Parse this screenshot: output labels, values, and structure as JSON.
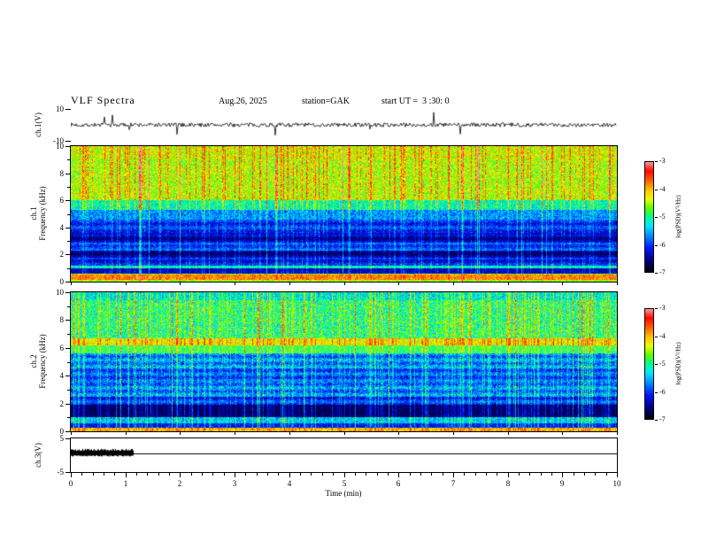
{
  "header": {
    "title": "VLF Spectra",
    "date": "Aug.26, 2025",
    "station": "station=GAK",
    "start_ut": "start UT =  3 :30: 0"
  },
  "x_axis": {
    "label": "Time (min)",
    "min": 0,
    "max": 10,
    "major_ticks": [
      0,
      1,
      2,
      3,
      4,
      5,
      6,
      7,
      8,
      9,
      10
    ],
    "minor_step": 0.2
  },
  "panels": {
    "ch1_wave": {
      "ylabel": "ch.1(V)",
      "ymin": -10,
      "ymax": 10,
      "ytick_labels": [
        10,
        -10
      ]
    },
    "ch1_spec": {
      "ylabel_line1": "ch.1",
      "ylabel_line2": "Frequency (kHz)",
      "ymin": 0,
      "ymax": 10,
      "major_ticks": [
        10,
        8,
        6,
        4,
        2,
        0
      ],
      "minor_ticks": [
        9,
        7,
        5,
        3,
        1
      ]
    },
    "ch2_spec": {
      "ylabel_line1": "ch.2",
      "ylabel_line2": "Frequency (kHz)",
      "ymin": 0,
      "ymax": 10,
      "major_ticks": [
        10,
        8,
        6,
        4,
        2,
        0
      ],
      "minor_ticks": [
        9,
        7,
        5,
        3,
        1
      ]
    },
    "ch3_wave": {
      "ylabel": "ch.3(V)",
      "ymin": -5,
      "ymax": 5,
      "ytick_labels": [
        5,
        -5
      ]
    }
  },
  "colorbar": {
    "label": "log(PSD)(V²/Hz)",
    "tick_values": [
      -3,
      -4,
      -5,
      -6,
      -7
    ],
    "vmin": -7,
    "vmax": -3
  },
  "colors": {
    "axis": "#000000",
    "background": "#ffffff"
  },
  "colormap_stops": [
    [
      0.0,
      "#000008"
    ],
    [
      0.1,
      "#000080"
    ],
    [
      0.22,
      "#0018ff"
    ],
    [
      0.33,
      "#0090ff"
    ],
    [
      0.42,
      "#00e8ff"
    ],
    [
      0.5,
      "#00ff90"
    ],
    [
      0.58,
      "#58ff00"
    ],
    [
      0.66,
      "#e8ff00"
    ],
    [
      0.74,
      "#ffc800"
    ],
    [
      0.83,
      "#ff6000"
    ],
    [
      0.92,
      "#ff0800"
    ],
    [
      1.0,
      "#ff9898"
    ]
  ],
  "chart_data": [
    {
      "type": "line",
      "name": "ch.1 waveform",
      "xlabel": "Time (min)",
      "xlim": [
        0,
        10
      ],
      "ylabel": "ch.1(V)",
      "ylim": [
        -10,
        10
      ],
      "summary": "Broadband noise centered on 0 V with typical excursions of ±2 V and intermittent impulsive spikes reaching roughly ±8 V throughout the 10-minute record.",
      "gen": {
        "seed": 7,
        "noise_v": 1.3,
        "spike_prob": 0.015,
        "spike_v": 6.5
      }
    },
    {
      "type": "heatmap",
      "name": "ch.1 spectrogram",
      "xlabel": "Time (min)",
      "xlim": [
        0,
        10
      ],
      "ylabel": "Frequency (kHz)",
      "ylim": [
        0,
        10
      ],
      "zlabel": "log(PSD)(V²/Hz)",
      "zlim": [
        -7,
        -3
      ],
      "summary": "Above ~6 kHz yellow-green background (≈-4.5) with dense red vertical bursts to ≈-3; 2-5 kHz blue (≈-6 to -6.5) crossed by cyan vertical streaks; green line near 1 kHz; bright orange band ≈0.1-0.5 kHz (≈-3.9).",
      "bands": [
        {
          "f": [
            9.0,
            10.01
          ],
          "v": -4.35,
          "n": 0.55
        },
        {
          "f": [
            6.0,
            9.0
          ],
          "v": -4.45,
          "n": 0.55
        },
        {
          "f": [
            5.3,
            6.0
          ],
          "v": -5.15,
          "n": 0.5
        },
        {
          "f": [
            4.6,
            5.3
          ],
          "v": -5.7,
          "n": 0.45
        },
        {
          "f": [
            3.6,
            4.6
          ],
          "v": -6.1,
          "n": 0.4
        },
        {
          "f": [
            2.9,
            3.6
          ],
          "v": -6.45,
          "n": 0.3
        },
        {
          "f": [
            2.3,
            2.9
          ],
          "v": -6.0,
          "n": 0.4
        },
        {
          "f": [
            1.75,
            2.3
          ],
          "v": -6.55,
          "n": 0.3
        },
        {
          "f": [
            1.2,
            1.75
          ],
          "v": -6.2,
          "n": 0.4
        },
        {
          "f": [
            1.0,
            1.2
          ],
          "v": -5.2,
          "n": 0.4
        },
        {
          "f": [
            0.62,
            1.0
          ],
          "v": -6.4,
          "n": 0.3
        },
        {
          "f": [
            0.5,
            0.62
          ],
          "v": -4.6,
          "n": 0.4
        },
        {
          "f": [
            0.12,
            0.5
          ],
          "v": -3.85,
          "n": 0.35
        },
        {
          "f": [
            0.0,
            0.12
          ],
          "v": -4.6,
          "n": 0.3
        }
      ],
      "streaks": {
        "strong_prob": 0.05,
        "strong": 1.35,
        "weak_prob": 0.22,
        "weak": 0.55,
        "full_above": 5.3,
        "below_factor": 0.55
      },
      "hstripe": {
        "f": [
          1.2,
          4.6
        ],
        "period": 0.55,
        "amp": 0.18
      },
      "seed": 21
    },
    {
      "type": "heatmap",
      "name": "ch.2 spectrogram",
      "xlabel": "Time (min)",
      "xlim": [
        0,
        10
      ],
      "ylabel": "Frequency (kHz)",
      "ylim": [
        0,
        10
      ],
      "zlabel": "log(PSD)(V²/Hz)",
      "zlim": [
        -7,
        -3
      ],
      "summary": "Green-cyan background above ~6.7 kHz (≈-5); bright yellow band near 6.2-6.7 kHz (≈-4.3); 2-5.6 kHz blue (≈-5.8 to -6) with cyan vertical streaks and horizontal striations; dark navy band 1-1.9 kHz (≈-6.7); thin bright band at the bottom edge (≈-4.1).",
      "bands": [
        {
          "f": [
            9.4,
            10.01
          ],
          "v": -5.3,
          "n": 0.5
        },
        {
          "f": [
            6.7,
            9.4
          ],
          "v": -5.0,
          "n": 0.6
        },
        {
          "f": [
            6.15,
            6.7
          ],
          "v": -4.25,
          "n": 0.4
        },
        {
          "f": [
            5.6,
            6.15
          ],
          "v": -4.9,
          "n": 0.45
        },
        {
          "f": [
            4.5,
            5.6
          ],
          "v": -5.75,
          "n": 0.5
        },
        {
          "f": [
            3.5,
            4.5
          ],
          "v": -5.95,
          "n": 0.45
        },
        {
          "f": [
            2.5,
            3.5
          ],
          "v": -5.8,
          "n": 0.5
        },
        {
          "f": [
            1.9,
            2.5
          ],
          "v": -6.1,
          "n": 0.4
        },
        {
          "f": [
            1.05,
            1.9
          ],
          "v": -6.7,
          "n": 0.25
        },
        {
          "f": [
            0.6,
            1.05
          ],
          "v": -5.5,
          "n": 0.45
        },
        {
          "f": [
            0.25,
            0.6
          ],
          "v": -6.2,
          "n": 0.35
        },
        {
          "f": [
            0.0,
            0.25
          ],
          "v": -4.1,
          "n": 0.4
        }
      ],
      "streaks": {
        "strong_prob": 0.07,
        "strong": 1.0,
        "weak_prob": 0.28,
        "weak": 0.5,
        "full_above": 6.15,
        "below_factor": 0.8
      },
      "hstripe": {
        "f": [
          1.9,
          5.6
        ],
        "period": 0.5,
        "amp": 0.22
      },
      "seed": 33
    },
    {
      "type": "line",
      "name": "ch.3 waveform",
      "xlabel": "Time (min)",
      "xlim": [
        0,
        10
      ],
      "ylabel": "ch.3(V)",
      "ylim": [
        -5,
        5
      ],
      "summary": "Dense dark oscillation burst from 0 to ≈1.15 min spanning roughly 0 to +1.6 V, then a constant flat trace at ≈+0.4 V out to 10 min.",
      "gen": {
        "seed": 5,
        "burst_end_min": 1.15,
        "burst_lo": -0.2,
        "burst_hi": 1.6,
        "flat_v": 0.4
      }
    }
  ]
}
